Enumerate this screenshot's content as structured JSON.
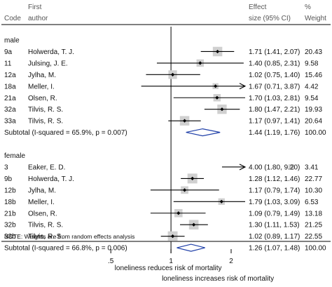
{
  "chart_data": {
    "type": "forest",
    "headers": {
      "code": "Code",
      "author_line1": "First",
      "author_line2": "author",
      "effect_line1": "Effect",
      "effect_line2": "size (95% CI)",
      "weight_line1": "%",
      "weight_line2": "Weight"
    },
    "groups": [
      {
        "label": "male",
        "studies": [
          {
            "code": "9a",
            "author": "Holwerda, T. J.",
            "es": 1.71,
            "lo": 1.41,
            "hi": 2.07,
            "label": "1.71 (1.41, 2.07)",
            "weight": "20.43",
            "arrow": false
          },
          {
            "code": "11",
            "author": "Julsing, J. E.",
            "es": 1.4,
            "lo": 0.85,
            "hi": 2.31,
            "label": "1.40 (0.85, 2.31)",
            "weight": "9.58",
            "arrow": false
          },
          {
            "code": "12a",
            "author": "Jylha, M.",
            "es": 1.02,
            "lo": 0.75,
            "hi": 1.4,
            "label": "1.02 (0.75, 1.40)",
            "weight": "15.46",
            "arrow": false
          },
          {
            "code": "18a",
            "author": "Meller, I.",
            "es": 1.67,
            "lo": 0.71,
            "hi": 3.87,
            "label": "1.67 (0.71, 3.87)",
            "weight": "4.42",
            "arrow": true
          },
          {
            "code": "21a",
            "author": "Olsen, R.",
            "es": 1.7,
            "lo": 1.03,
            "hi": 2.81,
            "label": "1.70 (1.03, 2.81)",
            "weight": "9.54",
            "arrow": false
          },
          {
            "code": "32a",
            "author": "Tilvis, R. S.",
            "es": 1.8,
            "lo": 1.47,
            "hi": 2.21,
            "label": "1.80 (1.47, 2.21)",
            "weight": "19.93",
            "arrow": false
          },
          {
            "code": "33a",
            "author": "Tilvis, R. S.",
            "es": 1.17,
            "lo": 0.97,
            "hi": 1.41,
            "label": "1.17 (0.97, 1.41)",
            "weight": "20.64",
            "arrow": false
          }
        ],
        "subtotal": {
          "label": "Subtotal  (I-squared = 65.9%, p = 0.007)",
          "es": 1.44,
          "lo": 1.19,
          "hi": 1.76,
          "value": "1.44 (1.19, 1.76)",
          "weight": "100.00"
        }
      },
      {
        "label": "female",
        "studies": [
          {
            "code": "3",
            "author": "Eaker, E. D.",
            "es": 4.0,
            "lo": 1.8,
            "hi": 9.2,
            "label": "4.00 (1.80, 9.20)",
            "weight": "3.41",
            "arrow": true
          },
          {
            "code": "9b",
            "author": "Holwerda, T. J.",
            "es": 1.28,
            "lo": 1.12,
            "hi": 1.46,
            "label": "1.28 (1.12, 1.46)",
            "weight": "22.77",
            "arrow": false
          },
          {
            "code": "12b",
            "author": "Jylha, M.",
            "es": 1.17,
            "lo": 0.79,
            "hi": 1.74,
            "label": "1.17 (0.79, 1.74)",
            "weight": "10.30",
            "arrow": false
          },
          {
            "code": "18b",
            "author": "Meller, I.",
            "es": 1.79,
            "lo": 1.03,
            "hi": 3.09,
            "label": "1.79 (1.03, 3.09)",
            "weight": "6.53",
            "arrow": false
          },
          {
            "code": "21b",
            "author": "Olsen, R.",
            "es": 1.09,
            "lo": 0.79,
            "hi": 1.49,
            "label": "1.09 (0.79, 1.49)",
            "weight": "13.18",
            "arrow": false
          },
          {
            "code": "32b",
            "author": "Tilvis, R. S.",
            "es": 1.3,
            "lo": 1.11,
            "hi": 1.53,
            "label": "1.30 (1.11, 1.53)",
            "weight": "21.25",
            "arrow": false
          },
          {
            "code": "33b",
            "author": "Tilvis, R. S.",
            "es": 1.02,
            "lo": 0.89,
            "hi": 1.17,
            "label": "1.02 (0.89, 1.17)",
            "weight": "22.55",
            "arrow": false
          }
        ],
        "subtotal": {
          "label": "Subtotal  (I-squared = 66.8%, p = 0.006)",
          "es": 1.26,
          "lo": 1.07,
          "hi": 1.48,
          "value": "1.26 (1.07, 1.48)",
          "weight": "100.00"
        }
      }
    ],
    "note": "NOTE: Weights are from random effects analysis",
    "x_axis": {
      "scale": "log",
      "xlim": [
        0.35,
        2.35
      ],
      "ticks": [
        0.5,
        1,
        2
      ],
      "tick_labels": [
        ".5",
        "1",
        "2"
      ],
      "label_left": "loneliness reduces risk of mortality",
      "label_right": "loneliness increases risk of mortality"
    },
    "colors": {
      "diamond": "#1f3fa8",
      "box": "#d0d0d0",
      "line": "#000000",
      "header": "#555555"
    }
  }
}
